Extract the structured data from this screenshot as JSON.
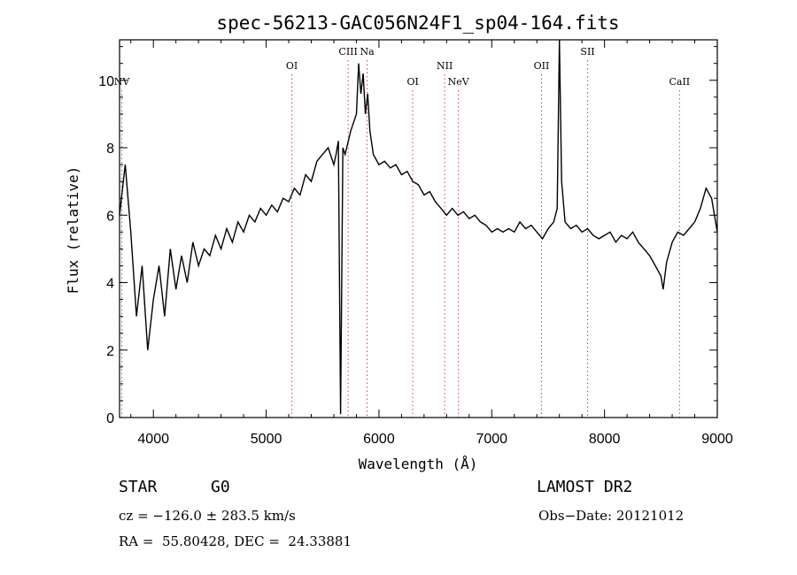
{
  "chart_data": {
    "type": "line",
    "title": "spec-56213-GAC056N24F1_sp04-164.fits",
    "xlabel": "Wavelength (Å)",
    "ylabel": "Flux (relative)",
    "xlim": [
      3700,
      9000
    ],
    "ylim": [
      0,
      11.2
    ],
    "x_ticks": [
      4000,
      5000,
      6000,
      7000,
      8000,
      9000
    ],
    "y_ticks": [
      0,
      2,
      4,
      6,
      8,
      10
    ],
    "grid": false,
    "line_color": "#000000",
    "marker_color": "#d23c3c",
    "spectrum": {
      "x": [
        3700,
        3750,
        3800,
        3850,
        3900,
        3950,
        4000,
        4050,
        4100,
        4150,
        4200,
        4250,
        4300,
        4350,
        4400,
        4450,
        4500,
        4550,
        4600,
        4650,
        4700,
        4750,
        4800,
        4850,
        4900,
        4950,
        5000,
        5050,
        5100,
        5150,
        5200,
        5250,
        5300,
        5350,
        5400,
        5450,
        5500,
        5550,
        5600,
        5620,
        5640,
        5660,
        5680,
        5700,
        5750,
        5800,
        5820,
        5840,
        5860,
        5880,
        5900,
        5920,
        5950,
        6000,
        6050,
        6100,
        6150,
        6200,
        6250,
        6300,
        6350,
        6400,
        6450,
        6500,
        6550,
        6600,
        6650,
        6700,
        6750,
        6800,
        6850,
        6900,
        6950,
        7000,
        7050,
        7100,
        7150,
        7200,
        7250,
        7300,
        7350,
        7400,
        7450,
        7500,
        7550,
        7580,
        7600,
        7620,
        7650,
        7700,
        7750,
        7800,
        7850,
        7900,
        7950,
        8000,
        8050,
        8100,
        8150,
        8200,
        8250,
        8300,
        8350,
        8400,
        8450,
        8500,
        8520,
        8550,
        8600,
        8650,
        8700,
        8750,
        8800,
        8850,
        8900,
        8950,
        9000
      ],
      "y": [
        6.0,
        7.5,
        5.5,
        3.0,
        4.5,
        2.0,
        3.5,
        4.5,
        3.0,
        5.0,
        3.8,
        4.8,
        4.0,
        5.2,
        4.5,
        5.0,
        4.8,
        5.4,
        5.0,
        5.6,
        5.2,
        5.8,
        5.5,
        6.0,
        5.8,
        6.2,
        6.0,
        6.3,
        6.1,
        6.5,
        6.4,
        6.8,
        6.6,
        7.2,
        7.0,
        7.6,
        7.8,
        8.0,
        7.5,
        7.8,
        8.2,
        0.1,
        8.0,
        7.8,
        8.5,
        9.0,
        10.5,
        9.6,
        10.2,
        9.0,
        9.6,
        8.5,
        7.8,
        7.5,
        7.6,
        7.4,
        7.5,
        7.2,
        7.3,
        7.0,
        6.9,
        6.6,
        6.7,
        6.4,
        6.2,
        6.0,
        6.2,
        6.0,
        6.1,
        5.9,
        6.0,
        5.8,
        5.7,
        5.5,
        5.6,
        5.5,
        5.6,
        5.5,
        5.8,
        5.6,
        5.7,
        5.5,
        5.3,
        5.6,
        5.8,
        6.2,
        11.2,
        7.0,
        5.8,
        5.6,
        5.7,
        5.5,
        5.6,
        5.4,
        5.3,
        5.4,
        5.5,
        5.2,
        5.4,
        5.3,
        5.5,
        5.2,
        5.0,
        4.8,
        4.5,
        4.2,
        3.8,
        4.6,
        5.2,
        5.5,
        5.4,
        5.6,
        5.8,
        6.2,
        6.8,
        6.5,
        5.5
      ]
    },
    "spectral_lines": [
      {
        "label": "NV",
        "x": 3720,
        "label_row": "low"
      },
      {
        "label": "OI",
        "x": 5228,
        "label_row": "mid"
      },
      {
        "label": "CIII",
        "x": 5727,
        "label_row": "high"
      },
      {
        "label": "Na",
        "x": 5895,
        "label_row": "high"
      },
      {
        "label": "OI",
        "x": 6300,
        "label_row": "low"
      },
      {
        "label": "NII",
        "x": 6583,
        "label_row": "mid"
      },
      {
        "label": "NeV",
        "x": 6705,
        "label_row": "low"
      },
      {
        "label": "OII",
        "x": 7441,
        "label_row": "mid"
      },
      {
        "label": "SII",
        "x": 7850,
        "label_row": "high"
      },
      {
        "label": "CaII",
        "x": 8665,
        "label_row": "low"
      }
    ]
  },
  "info": {
    "class": "STAR",
    "subclass": "G0",
    "survey": "LAMOST DR2",
    "redshift_line": "cz = −126.0 ± 283.5 km/s",
    "obs_date": "Obs−Date: 20121012",
    "coords": "RA =  55.80428, DEC =  24.33881"
  }
}
